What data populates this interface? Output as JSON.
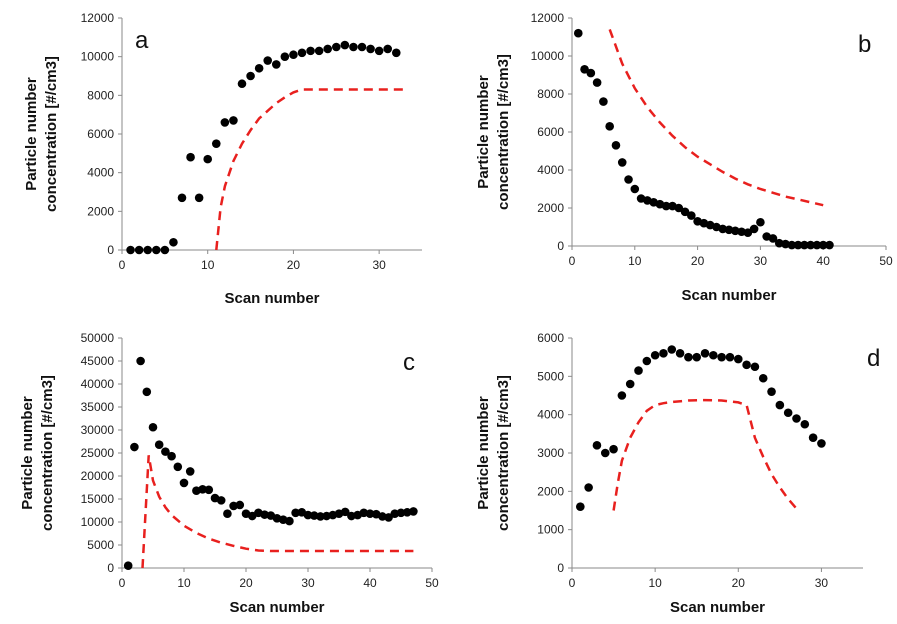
{
  "chart_data": [
    {
      "type": "scatter",
      "panel": "a",
      "xlabel": "Scan number",
      "ylabel": [
        "Particle number",
        "concentration [#/cm3]"
      ],
      "xlim": [
        0,
        35
      ],
      "ylim": [
        0,
        12000
      ],
      "xticks": [
        0,
        10,
        20,
        30
      ],
      "yticks": [
        0,
        2000,
        4000,
        6000,
        8000,
        10000,
        12000
      ],
      "ytick_labels": [
        "0",
        "2000",
        "4000",
        "6000",
        "8000",
        "10000",
        "12000"
      ],
      "series": [
        {
          "kind": "points",
          "color": "#000000",
          "x": [
            1,
            2,
            3,
            4,
            5,
            6,
            7,
            8,
            9,
            10,
            11,
            12,
            13,
            14,
            15,
            16,
            17,
            18,
            19,
            20,
            21,
            22,
            23,
            24,
            25,
            26,
            27,
            28,
            29,
            30,
            31,
            32
          ],
          "y": [
            0,
            0,
            0,
            0,
            0,
            400,
            2700,
            4800,
            2700,
            4700,
            5500,
            6600,
            6700,
            8600,
            9000,
            9400,
            9800,
            9600,
            10000,
            10100,
            10200,
            10300,
            10300,
            10400,
            10500,
            10600,
            10500,
            10500,
            10400,
            10300,
            10400,
            10200
          ]
        },
        {
          "kind": "dashed-line",
          "color": "#e8201e",
          "x": [
            11,
            11.5,
            12,
            13,
            14,
            15,
            16,
            17,
            18,
            19,
            20,
            21,
            22,
            23,
            24,
            25,
            26,
            27,
            28,
            29,
            30,
            31,
            32,
            33
          ],
          "y": [
            0,
            2200,
            3300,
            4600,
            5500,
            6200,
            6800,
            7200,
            7600,
            7900,
            8150,
            8300,
            8300,
            8300,
            8300,
            8300,
            8300,
            8300,
            8300,
            8300,
            8300,
            8300,
            8300,
            8300
          ]
        }
      ]
    },
    {
      "type": "scatter",
      "panel": "b",
      "xlabel": "Scan number",
      "ylabel": [
        "Particle number",
        "concentration [#/cm3]"
      ],
      "xlim": [
        0,
        50
      ],
      "ylim": [
        0,
        12000
      ],
      "xticks": [
        0,
        10,
        20,
        30,
        40,
        50
      ],
      "yticks": [
        0,
        2000,
        4000,
        6000,
        8000,
        10000,
        12000
      ],
      "ytick_labels": [
        "0",
        "2000",
        "4000",
        "6000",
        "8000",
        "10000",
        "12000"
      ],
      "series": [
        {
          "kind": "points",
          "color": "#000000",
          "x": [
            1,
            2,
            3,
            4,
            5,
            6,
            7,
            8,
            9,
            10,
            11,
            12,
            13,
            14,
            15,
            16,
            17,
            18,
            19,
            20,
            21,
            22,
            23,
            24,
            25,
            26,
            27,
            28,
            29,
            30,
            31,
            32,
            33,
            34,
            35,
            36,
            37,
            38,
            39,
            40,
            41
          ],
          "y": [
            11200,
            9300,
            9100,
            8600,
            7600,
            6300,
            5300,
            4400,
            3500,
            3000,
            2500,
            2400,
            2300,
            2200,
            2100,
            2100,
            2000,
            1800,
            1600,
            1300,
            1200,
            1100,
            1000,
            900,
            850,
            800,
            750,
            700,
            900,
            1250,
            500,
            400,
            150,
            100,
            50,
            50,
            50,
            50,
            50,
            50,
            50
          ]
        },
        {
          "kind": "dashed-line",
          "color": "#e8201e",
          "x": [
            6,
            8,
            10,
            12,
            14,
            16,
            18,
            20,
            22,
            24,
            26,
            28,
            30,
            32,
            34,
            36,
            38,
            40
          ],
          "y": [
            11400,
            9600,
            8300,
            7300,
            6500,
            5800,
            5200,
            4700,
            4300,
            3900,
            3550,
            3250,
            3000,
            2800,
            2600,
            2450,
            2300,
            2150
          ]
        }
      ]
    },
    {
      "type": "scatter",
      "panel": "c",
      "xlabel": "Scan number",
      "ylabel": [
        "Particle number",
        "concentration [#/cm3]"
      ],
      "xlim": [
        0,
        50
      ],
      "ylim": [
        0,
        50000
      ],
      "xticks": [
        0,
        10,
        20,
        30,
        40,
        50
      ],
      "yticks": [
        0,
        5000,
        10000,
        15000,
        20000,
        25000,
        30000,
        35000,
        40000,
        45000,
        50000
      ],
      "ytick_labels": [
        "0",
        "5000",
        "10000",
        "15000",
        "20000",
        "25000",
        "30000",
        "35000",
        "40000",
        "45000",
        "50000"
      ],
      "series": [
        {
          "kind": "points",
          "color": "#000000",
          "x": [
            1,
            2,
            3,
            4,
            5,
            6,
            7,
            8,
            9,
            10,
            11,
            12,
            13,
            14,
            15,
            16,
            17,
            18,
            19,
            20,
            21,
            22,
            23,
            24,
            25,
            26,
            27,
            28,
            29,
            30,
            31,
            32,
            33,
            34,
            35,
            36,
            37,
            38,
            39,
            40,
            41,
            42,
            43,
            44,
            45,
            46,
            47
          ],
          "y": [
            500,
            26300,
            45000,
            38300,
            30600,
            26800,
            25300,
            24300,
            22000,
            18500,
            21000,
            16800,
            17100,
            17000,
            15200,
            14700,
            11800,
            13500,
            13700,
            11800,
            11300,
            12000,
            11600,
            11400,
            10800,
            10500,
            10200,
            12000,
            12100,
            11500,
            11400,
            11200,
            11300,
            11500,
            11800,
            12200,
            11300,
            11500,
            12000,
            11800,
            11700,
            11200,
            11000,
            11800,
            12000,
            12100,
            12300
          ]
        },
        {
          "kind": "dashed-line",
          "color": "#e8201e",
          "x": [
            3.3,
            4.3,
            5,
            6,
            7,
            8,
            10,
            12,
            14,
            16,
            18,
            20,
            22,
            24,
            26,
            28,
            30,
            35,
            40,
            45,
            47
          ],
          "y": [
            0,
            24500,
            19000,
            15500,
            13200,
            11500,
            9200,
            7600,
            6400,
            5500,
            4800,
            4200,
            3800,
            3700,
            3700,
            3700,
            3700,
            3700,
            3700,
            3700,
            3700
          ]
        }
      ]
    },
    {
      "type": "scatter",
      "panel": "d",
      "xlabel": "Scan number",
      "ylabel": [
        "Particle number",
        "concentration [#/cm3]"
      ],
      "xlim": [
        0,
        35
      ],
      "ylim": [
        0,
        6000
      ],
      "xticks": [
        0,
        10,
        20,
        30
      ],
      "yticks": [
        0,
        1000,
        2000,
        3000,
        4000,
        5000,
        6000
      ],
      "ytick_labels": [
        "0",
        "1000",
        "2000",
        "3000",
        "4000",
        "5000",
        "6000"
      ],
      "series": [
        {
          "kind": "points",
          "color": "#000000",
          "x": [
            1,
            2,
            3,
            4,
            5,
            6,
            7,
            8,
            9,
            10,
            11,
            12,
            13,
            14,
            15,
            16,
            17,
            18,
            19,
            20,
            21,
            22,
            23,
            24,
            25,
            26,
            27,
            28,
            29,
            30
          ],
          "y": [
            1600,
            2100,
            3200,
            3000,
            3100,
            4500,
            4800,
            5150,
            5400,
            5550,
            5600,
            5700,
            5600,
            5500,
            5500,
            5600,
            5550,
            5500,
            5500,
            5450,
            5300,
            5250,
            4950,
            4600,
            4250,
            4050,
            3900,
            3750,
            3400,
            3250
          ]
        },
        {
          "kind": "dashed-line",
          "color": "#e8201e",
          "x": [
            5,
            5.5,
            6,
            7,
            8,
            9,
            10,
            11,
            12,
            14,
            16,
            18,
            20,
            21,
            22,
            23,
            24,
            25,
            26,
            27
          ],
          "y": [
            1500,
            2200,
            2800,
            3400,
            3800,
            4100,
            4250,
            4300,
            4330,
            4370,
            4380,
            4370,
            4320,
            4250,
            3400,
            2900,
            2450,
            2100,
            1800,
            1550
          ]
        }
      ]
    }
  ]
}
